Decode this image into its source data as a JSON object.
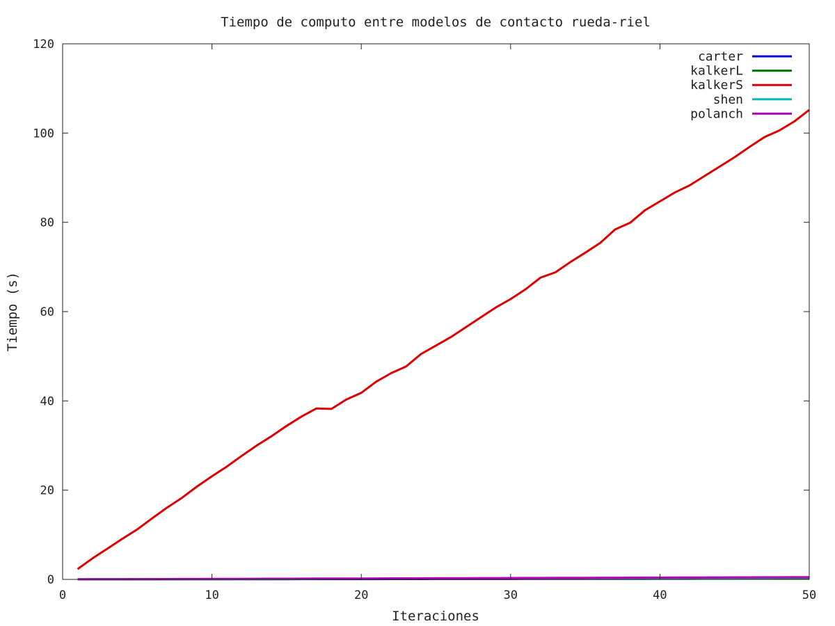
{
  "chart_data": {
    "type": "line",
    "title": "Tiempo de computo entre modelos de contacto rueda-riel",
    "xlabel": "Iteraciones",
    "ylabel": "Tiempo (s)",
    "xlim": [
      0,
      50
    ],
    "ylim": [
      0,
      120
    ],
    "xticks": [
      0,
      10,
      20,
      30,
      40,
      50
    ],
    "yticks": [
      0,
      20,
      40,
      60,
      80,
      100,
      120
    ],
    "grid": false,
    "legend_position": "top-right",
    "x": [
      1,
      2,
      3,
      4,
      5,
      6,
      7,
      8,
      9,
      10,
      11,
      12,
      13,
      14,
      15,
      16,
      17,
      18,
      19,
      20,
      21,
      22,
      23,
      24,
      25,
      26,
      27,
      28,
      29,
      30,
      31,
      32,
      33,
      34,
      35,
      36,
      37,
      38,
      39,
      40,
      41,
      42,
      43,
      44,
      45,
      46,
      47,
      48,
      49,
      50
    ],
    "series": [
      {
        "name": "carter",
        "color": "#0000cc",
        "values": [
          0.01,
          0.01,
          0.01,
          0.02,
          0.02,
          0.02,
          0.03,
          0.03,
          0.03,
          0.04,
          0.04,
          0.04,
          0.05,
          0.05,
          0.05,
          0.06,
          0.06,
          0.06,
          0.07,
          0.07,
          0.07,
          0.08,
          0.08,
          0.08,
          0.09,
          0.09,
          0.09,
          0.1,
          0.1,
          0.1,
          0.11,
          0.11,
          0.11,
          0.12,
          0.12,
          0.12,
          0.13,
          0.13,
          0.13,
          0.14,
          0.14,
          0.14,
          0.15,
          0.15,
          0.15,
          0.16,
          0.16,
          0.16,
          0.17,
          0.17
        ]
      },
      {
        "name": "kalkerL",
        "color": "#007700",
        "values": [
          0.01,
          0.02,
          0.02,
          0.03,
          0.03,
          0.04,
          0.05,
          0.05,
          0.06,
          0.06,
          0.07,
          0.08,
          0.08,
          0.09,
          0.09,
          0.1,
          0.11,
          0.11,
          0.12,
          0.12,
          0.13,
          0.14,
          0.14,
          0.15,
          0.15,
          0.16,
          0.17,
          0.17,
          0.18,
          0.18,
          0.19,
          0.2,
          0.2,
          0.21,
          0.21,
          0.22,
          0.23,
          0.23,
          0.24,
          0.24,
          0.25,
          0.26,
          0.26,
          0.27,
          0.27,
          0.28,
          0.29,
          0.29,
          0.3,
          0.3
        ]
      },
      {
        "name": "kalkerS",
        "color": "#dd0000",
        "values": [
          2.3,
          4.7,
          6.9,
          9.1,
          11.2,
          13.7,
          16.1,
          18.3,
          20.8,
          23.1,
          25.3,
          27.7,
          30.0,
          32.1,
          34.4,
          36.5,
          38.3,
          38.2,
          40.3,
          41.8,
          44.3,
          46.2,
          47.7,
          50.5,
          52.4,
          54.3,
          56.5,
          58.7,
          60.9,
          62.8,
          65.0,
          67.6,
          68.8,
          71.1,
          73.2,
          75.4,
          78.4,
          79.9,
          82.7,
          84.7,
          86.7,
          88.3,
          90.4,
          92.5,
          94.6,
          96.9,
          99.1,
          100.6,
          102.6,
          105.2
        ]
      },
      {
        "name": "shen",
        "color": "#00bbbb",
        "values": [
          0.01,
          0.02,
          0.03,
          0.04,
          0.04,
          0.05,
          0.06,
          0.07,
          0.08,
          0.08,
          0.09,
          0.1,
          0.11,
          0.12,
          0.12,
          0.13,
          0.14,
          0.15,
          0.16,
          0.16,
          0.17,
          0.18,
          0.19,
          0.2,
          0.2,
          0.21,
          0.22,
          0.23,
          0.24,
          0.24,
          0.25,
          0.26,
          0.27,
          0.28,
          0.28,
          0.29,
          0.3,
          0.31,
          0.32,
          0.32,
          0.33,
          0.34,
          0.35,
          0.36,
          0.36,
          0.37,
          0.38,
          0.39,
          0.4,
          0.4
        ]
      },
      {
        "name": "polanch",
        "color": "#bb00bb",
        "values": [
          0.02,
          0.03,
          0.04,
          0.05,
          0.06,
          0.07,
          0.08,
          0.09,
          0.1,
          0.11,
          0.12,
          0.13,
          0.14,
          0.15,
          0.16,
          0.17,
          0.18,
          0.19,
          0.2,
          0.21,
          0.22,
          0.23,
          0.24,
          0.25,
          0.26,
          0.27,
          0.28,
          0.29,
          0.3,
          0.31,
          0.32,
          0.33,
          0.34,
          0.35,
          0.36,
          0.37,
          0.38,
          0.39,
          0.4,
          0.41,
          0.42,
          0.43,
          0.44,
          0.45,
          0.46,
          0.47,
          0.48,
          0.49,
          0.5,
          0.51
        ]
      }
    ]
  }
}
